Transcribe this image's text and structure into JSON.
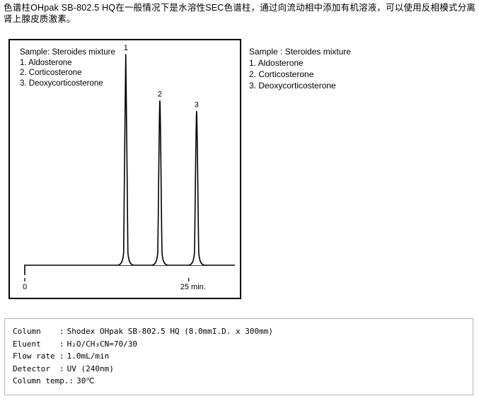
{
  "intro": {
    "text": "色谱柱OHpak SB-802.5 HQ在一般情况下是水溶性SEC色谱柱，通过向流动相中添加有机溶液，可以使用反相模式分离肾上腺皮质激素。"
  },
  "chromatogram": {
    "legend": {
      "title": "Sample: Steroides mixture",
      "items": [
        "1. Aldosterone",
        "2. Corticosterone",
        "3. Deoxycorticosterone"
      ]
    }
  },
  "sample_list": {
    "title": "Sample : Steroides mixture",
    "items": [
      "1. Aldosterone",
      "2. Corticosterone",
      "3. Deoxycorticosterone"
    ]
  },
  "conditions": {
    "separator": ":",
    "rows": [
      {
        "label": "Column",
        "value": "Shodex OHpak SB-802.5 HQ (8.0mmI.D. x 300mm)"
      },
      {
        "label": "Eluent",
        "value": "H₂O/CH₃CN=70/30"
      },
      {
        "label": "Flow rate",
        "value": "1.0mL/min"
      },
      {
        "label": "Detector",
        "value": "UV (240nm)"
      },
      {
        "label": "Column temp.",
        "value": "30℃"
      }
    ]
  },
  "chart_data": {
    "type": "line",
    "subtype": "chromatogram",
    "title": "Sample: Steroides mixture",
    "xlabel": "min",
    "ylabel": "",
    "x_range_min": [
      0,
      32
    ],
    "grid": false,
    "line_color": "#000000",
    "x_ticks": [
      {
        "t": 0,
        "label": "0",
        "align": "middle"
      },
      {
        "t": 25,
        "label": "25 min.",
        "align": "start"
      }
    ],
    "peaks": [
      {
        "label": "1",
        "compound": "Aldosterone",
        "retention_min": 15.4,
        "rel_height": 1.0
      },
      {
        "label": "2",
        "compound": "Corticosterone",
        "retention_min": 20.6,
        "rel_height": 0.78
      },
      {
        "label": "3",
        "compound": "Deoxycorticosterone",
        "retention_min": 26.2,
        "rel_height": 0.73
      }
    ]
  }
}
